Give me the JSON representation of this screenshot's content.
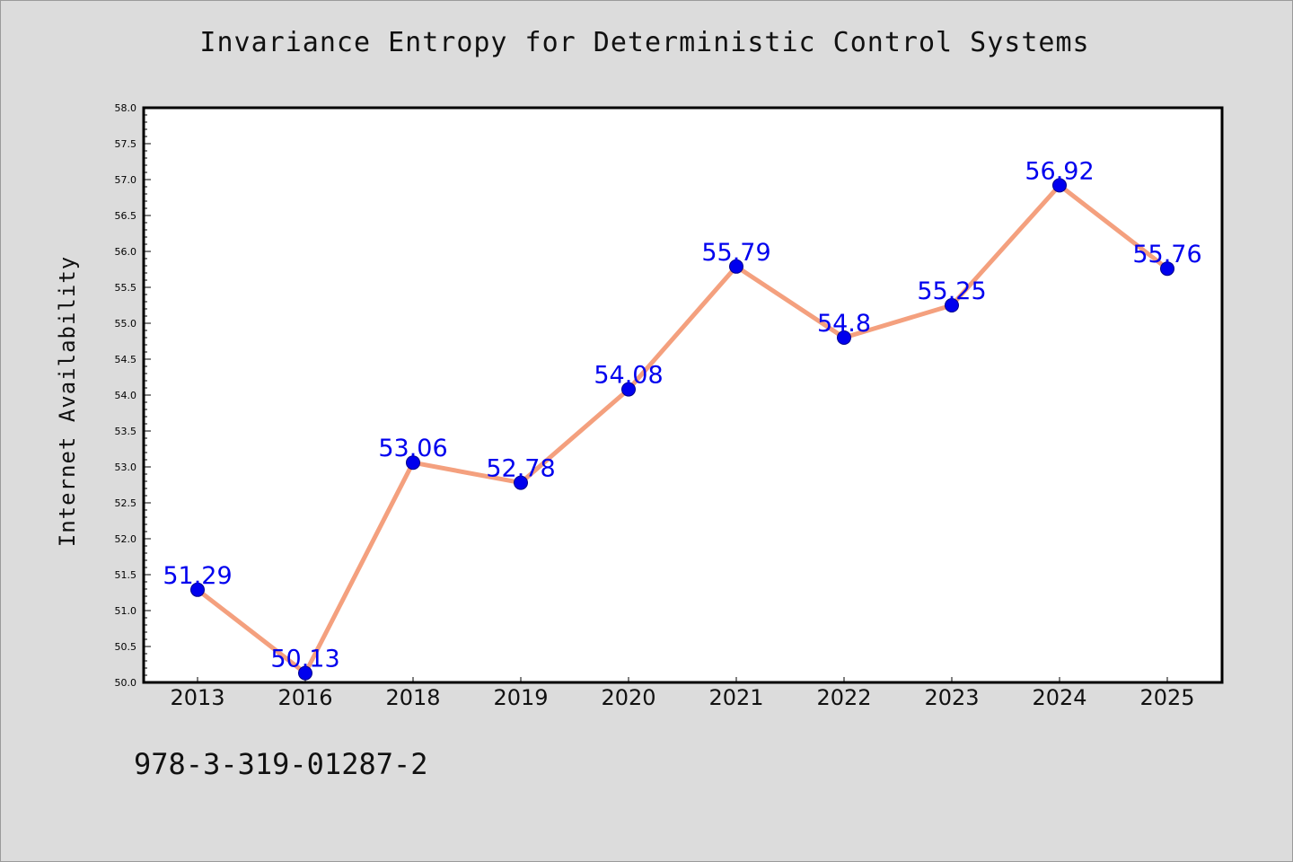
{
  "chart_data": {
    "type": "line",
    "title": "Invariance Entropy for Deterministic Control Systems",
    "xlabel": "",
    "ylabel": "Internet Availability",
    "categories": [
      "2013",
      "2016",
      "2018",
      "2019",
      "2020",
      "2021",
      "2022",
      "2023",
      "2024",
      "2025"
    ],
    "series": [
      {
        "values": [
          51.29,
          50.13,
          53.06,
          52.78,
          54.08,
          55.79,
          54.8,
          55.25,
          56.92,
          55.76
        ],
        "data_labels": [
          "51.29",
          "50.13",
          "53.06",
          "52.78",
          "54.08",
          "55.79",
          "54.8",
          "55.25",
          "56.92",
          "55.76"
        ]
      }
    ],
    "ylim": [
      50.0,
      58.0
    ],
    "yticks": [
      "50.0",
      "50.5",
      "51.0",
      "51.5",
      "52.0",
      "52.5",
      "53.0",
      "53.5",
      "54.0",
      "54.5",
      "55.0",
      "55.5",
      "56.0",
      "56.5",
      "57.0",
      "57.5",
      "58.0"
    ],
    "grid": false,
    "legend": "none"
  },
  "footer": {
    "code": "978-3-319-01287-2"
  },
  "colors": {
    "background": "#dcdcdc",
    "plot_area": "#ffffff",
    "line": "#f4a07e",
    "marker": "#0000ee",
    "data_label": "#0000ee"
  }
}
